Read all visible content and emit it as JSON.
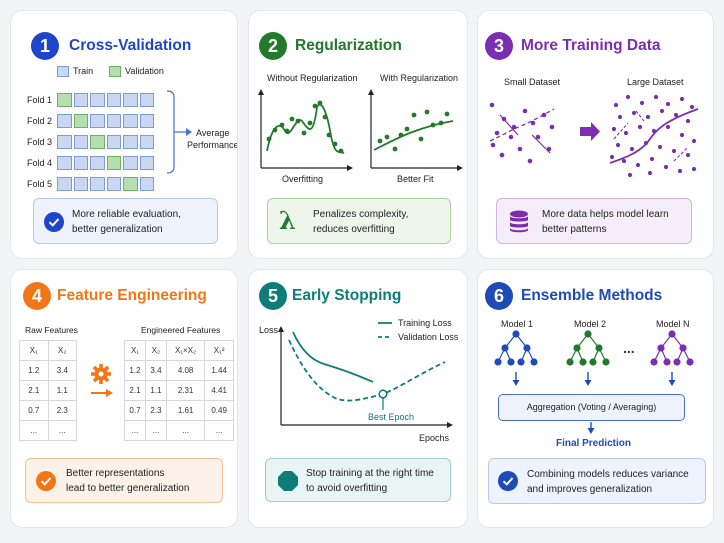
{
  "colors": {
    "blue": "#1f46c8",
    "green": "#237a2d",
    "purple": "#7b2fb0",
    "orange": "#f07718",
    "teal": "#0e7c79",
    "navy": "#1f4bb7"
  },
  "cards": {
    "cv": {
      "number": "1",
      "title": "Cross-Validation",
      "legend_train": "Train",
      "legend_validation": "Validation",
      "folds": [
        "Fold 1",
        "Fold 2",
        "Fold 3",
        "Fold 4",
        "Fold 5"
      ],
      "validation_index": [
        0,
        1,
        2,
        3,
        4
      ],
      "cells_per_fold": 6,
      "output_line1": "Average",
      "output_line2": "Performance",
      "note_icon": "check-circle-icon",
      "note_line1": "More reliable evaluation,",
      "note_line2": "better generalization"
    },
    "reg": {
      "number": "2",
      "title": "Regularization",
      "left_title": "Without Regularization",
      "right_title": "With Regularization",
      "left_caption": "Overfitting",
      "right_caption": "Better Fit",
      "note_icon": "lambda-icon",
      "note_symbol": "λ",
      "note_line1": "Penalizes complexity,",
      "note_line2": "reduces overfitting"
    },
    "data": {
      "number": "3",
      "title": "More Training Data",
      "left_title": "Small Dataset",
      "right_title": "Large Dataset",
      "note_icon": "database-icon",
      "note_line1": "More data helps model learn",
      "note_line2": "better patterns"
    },
    "fe": {
      "number": "4",
      "title": "Feature Engineering",
      "raw_title": "Raw Features",
      "eng_title": "Engineered Features",
      "raw_headers": [
        "X₁",
        "X₂"
      ],
      "raw_rows": [
        [
          "1.2",
          "3.4"
        ],
        [
          "2.1",
          "1.1"
        ],
        [
          "0.7",
          "2.3"
        ],
        [
          "...",
          "..."
        ]
      ],
      "eng_headers": [
        "X₁",
        "X₂",
        "X₁×X₂",
        "X₁²"
      ],
      "eng_rows": [
        [
          "1.2",
          "3.4",
          "4.08",
          "1.44"
        ],
        [
          "2.1",
          "1.1",
          "2.31",
          "4.41"
        ],
        [
          "0.7",
          "2.3",
          "1.61",
          "0.49"
        ],
        [
          "...",
          "...",
          "...",
          "..."
        ]
      ],
      "note_icon": "check-circle-icon",
      "note_line1": "Better representations",
      "note_line2": "lead to better generalization"
    },
    "es": {
      "number": "5",
      "title": "Early Stopping",
      "ylabel": "Loss",
      "xlabel": "Epochs",
      "legend_train": "Training Loss",
      "legend_val": "Validation Loss",
      "marker_label": "Best Epoch",
      "note_icon": "stop-octagon-icon",
      "note_line1": "Stop training at the right time",
      "note_line2": "to avoid overfitting"
    },
    "ens": {
      "number": "6",
      "title": "Ensemble Methods",
      "model_labels": [
        "Model 1",
        "Model 2",
        "Model N"
      ],
      "ellipsis": "...",
      "aggregation": "Aggregation (Voting / Averaging)",
      "final": "Final Prediction",
      "note_icon": "check-circle-icon",
      "note_line1": "Combining models reduces variance",
      "note_line2": "and improves generalization"
    }
  }
}
